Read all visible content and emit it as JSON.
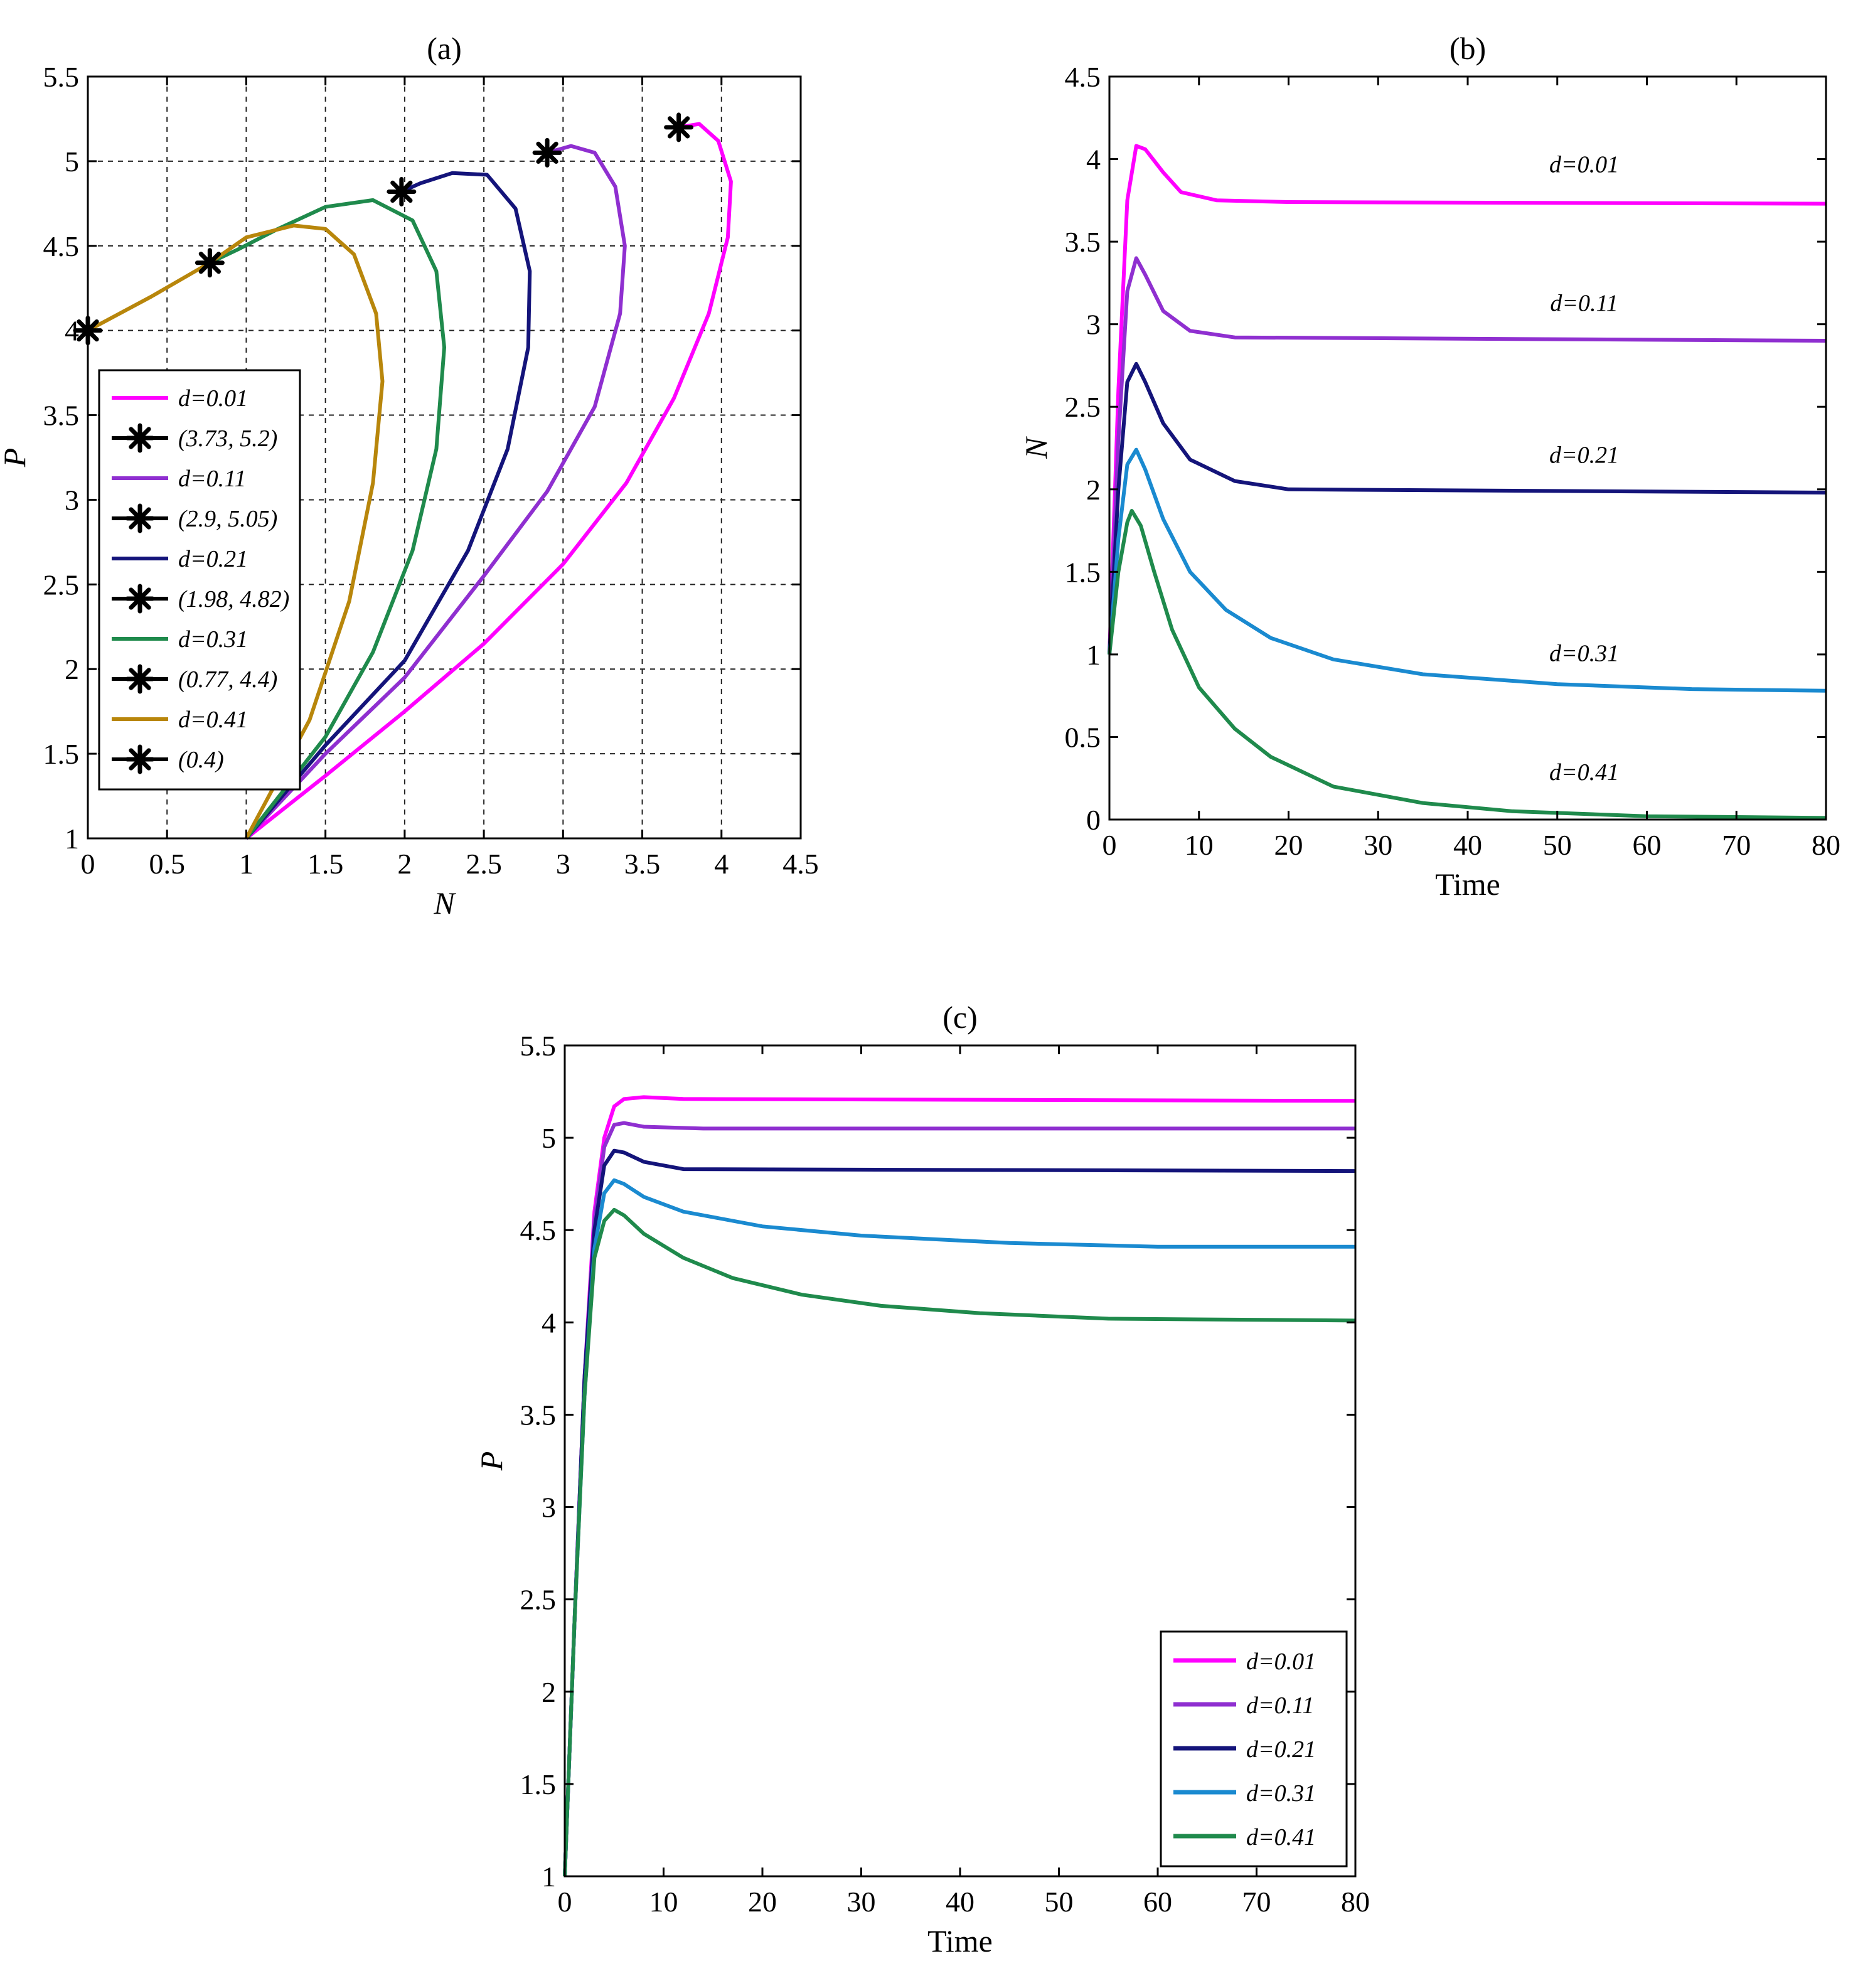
{
  "chart_data": [
    {
      "id": "a",
      "type": "line",
      "title": "(a)",
      "xlabel": "N",
      "ylabel": "P",
      "xlim": [
        0,
        4.5
      ],
      "ylim": [
        1,
        5.5
      ],
      "xticks": [
        "0",
        "0.5",
        "1",
        "1.5",
        "2",
        "2.5",
        "3",
        "3.5",
        "4",
        "4.5"
      ],
      "yticks": [
        "1",
        "1.5",
        "2",
        "2.5",
        "3",
        "3.5",
        "4",
        "4.5",
        "5",
        "5.5"
      ],
      "grid": true,
      "legend_position": "left-middle",
      "series": [
        {
          "name": "d=0.01",
          "color": "#ff00ff",
          "points": [
            [
              1,
              1
            ],
            [
              1.5,
              1.37
            ],
            [
              2,
              1.75
            ],
            [
              2.5,
              2.15
            ],
            [
              3,
              2.62
            ],
            [
              3.4,
              3.1
            ],
            [
              3.7,
              3.6
            ],
            [
              3.92,
              4.1
            ],
            [
              4.04,
              4.55
            ],
            [
              4.06,
              4.88
            ],
            [
              3.98,
              5.12
            ],
            [
              3.86,
              5.22
            ],
            [
              3.73,
              5.2
            ]
          ]
        },
        {
          "name": "d=0.11",
          "color": "#8f2fd0",
          "points": [
            [
              1,
              1
            ],
            [
              1.5,
              1.5
            ],
            [
              2,
              1.95
            ],
            [
              2.5,
              2.55
            ],
            [
              2.9,
              3.05
            ],
            [
              3.2,
              3.55
            ],
            [
              3.36,
              4.1
            ],
            [
              3.39,
              4.5
            ],
            [
              3.33,
              4.85
            ],
            [
              3.2,
              5.05
            ],
            [
              3.05,
              5.09
            ],
            [
              2.9,
              5.05
            ]
          ]
        },
        {
          "name": "d=0.21",
          "color": "#14147a",
          "points": [
            [
              1,
              1
            ],
            [
              1.5,
              1.55
            ],
            [
              2,
              2.05
            ],
            [
              2.4,
              2.7
            ],
            [
              2.65,
              3.3
            ],
            [
              2.78,
              3.9
            ],
            [
              2.79,
              4.35
            ],
            [
              2.7,
              4.72
            ],
            [
              2.52,
              4.92
            ],
            [
              2.3,
              4.93
            ],
            [
              2.1,
              4.87
            ],
            [
              1.98,
              4.82
            ]
          ]
        },
        {
          "name": "d=0.31",
          "color": "#1f8a4c",
          "points": [
            [
              1,
              1
            ],
            [
              1.5,
              1.6
            ],
            [
              1.8,
              2.1
            ],
            [
              2.05,
              2.7
            ],
            [
              2.2,
              3.3
            ],
            [
              2.25,
              3.9
            ],
            [
              2.2,
              4.35
            ],
            [
              2.05,
              4.65
            ],
            [
              1.8,
              4.77
            ],
            [
              1.5,
              4.73
            ],
            [
              1.2,
              4.6
            ],
            [
              0.95,
              4.48
            ],
            [
              0.77,
              4.4
            ]
          ]
        },
        {
          "name": "d=0.41",
          "color": "#b8860b",
          "points": [
            [
              1,
              1
            ],
            [
              1.4,
              1.7
            ],
            [
              1.65,
              2.4
            ],
            [
              1.8,
              3.1
            ],
            [
              1.86,
              3.7
            ],
            [
              1.82,
              4.1
            ],
            [
              1.68,
              4.45
            ],
            [
              1.5,
              4.6
            ],
            [
              1.3,
              4.62
            ],
            [
              1.0,
              4.55
            ],
            [
              0.77,
              4.4
            ],
            [
              0.4,
              4.2
            ],
            [
              0,
              4.0
            ]
          ]
        }
      ],
      "markers": [
        {
          "label": "(3.73, 5.2)",
          "x": 3.73,
          "y": 5.2
        },
        {
          "label": "(2.9, 5.05)",
          "x": 2.9,
          "y": 5.05
        },
        {
          "label": "(1.98, 4.82)",
          "x": 1.98,
          "y": 4.82
        },
        {
          "label": "(0.77, 4.4)",
          "x": 0.77,
          "y": 4.4
        },
        {
          "label": "(0.4)",
          "x": 0,
          "y": 4.0
        }
      ]
    },
    {
      "id": "b",
      "type": "line",
      "title": "(b)",
      "xlabel": "Time",
      "ylabel": "N",
      "xlim": [
        0,
        80
      ],
      "ylim": [
        0,
        4.5
      ],
      "xticks": [
        "0",
        "10",
        "20",
        "30",
        "40",
        "50",
        "60",
        "70",
        "80"
      ],
      "yticks": [
        "0",
        "0.5",
        "1",
        "1.5",
        "2",
        "2.5",
        "3",
        "3.5",
        "4",
        "4.5"
      ],
      "grid": false,
      "series": [
        {
          "name": "d=0.01",
          "label_x": 53,
          "label_y": 3.92,
          "color": "#ff00ff",
          "points": [
            [
              0,
              1
            ],
            [
              1,
              2.6
            ],
            [
              2,
              3.75
            ],
            [
              3,
              4.08
            ],
            [
              4,
              4.06
            ],
            [
              6,
              3.92
            ],
            [
              8,
              3.8
            ],
            [
              12,
              3.75
            ],
            [
              20,
              3.74
            ],
            [
              80,
              3.73
            ]
          ]
        },
        {
          "name": "d=0.11",
          "label_x": 53,
          "label_y": 3.08,
          "color": "#8f2fd0",
          "points": [
            [
              0,
              1
            ],
            [
              1,
              2.3
            ],
            [
              2,
              3.2
            ],
            [
              3,
              3.4
            ],
            [
              4,
              3.3
            ],
            [
              6,
              3.08
            ],
            [
              9,
              2.96
            ],
            [
              14,
              2.92
            ],
            [
              80,
              2.9
            ]
          ]
        },
        {
          "name": "d=0.21",
          "label_x": 53,
          "label_y": 2.16,
          "color": "#14147a",
          "points": [
            [
              0,
              1
            ],
            [
              1,
              2.0
            ],
            [
              2,
              2.65
            ],
            [
              3,
              2.76
            ],
            [
              4,
              2.65
            ],
            [
              6,
              2.4
            ],
            [
              9,
              2.18
            ],
            [
              14,
              2.05
            ],
            [
              20,
              2.0
            ],
            [
              80,
              1.98
            ]
          ]
        },
        {
          "name": "d=0.31",
          "label_x": 53,
          "label_y": 0.96,
          "color": "#1a8ad0",
          "points": [
            [
              0,
              1
            ],
            [
              1,
              1.7
            ],
            [
              2,
              2.15
            ],
            [
              3,
              2.24
            ],
            [
              4,
              2.12
            ],
            [
              6,
              1.82
            ],
            [
              9,
              1.5
            ],
            [
              13,
              1.27
            ],
            [
              18,
              1.1
            ],
            [
              25,
              0.97
            ],
            [
              35,
              0.88
            ],
            [
              50,
              0.82
            ],
            [
              65,
              0.79
            ],
            [
              80,
              0.78
            ]
          ]
        },
        {
          "name": "d=0.41",
          "label_x": 53,
          "label_y": 0.24,
          "color": "#1f8a4c",
          "points": [
            [
              0,
              1
            ],
            [
              1,
              1.5
            ],
            [
              2,
              1.8
            ],
            [
              2.5,
              1.87
            ],
            [
              3.5,
              1.78
            ],
            [
              5,
              1.5
            ],
            [
              7,
              1.15
            ],
            [
              10,
              0.8
            ],
            [
              14,
              0.55
            ],
            [
              18,
              0.38
            ],
            [
              25,
              0.2
            ],
            [
              35,
              0.1
            ],
            [
              45,
              0.05
            ],
            [
              60,
              0.02
            ],
            [
              80,
              0.01
            ]
          ]
        }
      ]
    },
    {
      "id": "c",
      "type": "line",
      "title": "(c)",
      "xlabel": "Time",
      "ylabel": "P",
      "xlim": [
        0,
        80
      ],
      "ylim": [
        1,
        5.5
      ],
      "xticks": [
        "0",
        "10",
        "20",
        "30",
        "40",
        "50",
        "60",
        "70",
        "80"
      ],
      "yticks": [
        "1",
        "1.5",
        "2",
        "2.5",
        "3",
        "3.5",
        "4",
        "4.5",
        "5",
        "5.5"
      ],
      "grid": false,
      "legend_position": "bottom-right",
      "series": [
        {
          "name": "d=0.01",
          "color": "#ff00ff",
          "points": [
            [
              0,
              1
            ],
            [
              1,
              2.4
            ],
            [
              2,
              3.7
            ],
            [
              3,
              4.6
            ],
            [
              4,
              5.0
            ],
            [
              5,
              5.17
            ],
            [
              6,
              5.21
            ],
            [
              8,
              5.22
            ],
            [
              12,
              5.21
            ],
            [
              80,
              5.2
            ]
          ]
        },
        {
          "name": "d=0.11",
          "color": "#8f2fd0",
          "points": [
            [
              0,
              1
            ],
            [
              1,
              2.4
            ],
            [
              2,
              3.7
            ],
            [
              3,
              4.55
            ],
            [
              4,
              4.95
            ],
            [
              5,
              5.07
            ],
            [
              6,
              5.08
            ],
            [
              8,
              5.06
            ],
            [
              14,
              5.05
            ],
            [
              80,
              5.05
            ]
          ]
        },
        {
          "name": "d=0.21",
          "color": "#14147a",
          "points": [
            [
              0,
              1
            ],
            [
              1,
              2.4
            ],
            [
              2,
              3.7
            ],
            [
              3,
              4.5
            ],
            [
              4,
              4.85
            ],
            [
              5,
              4.93
            ],
            [
              6,
              4.92
            ],
            [
              8,
              4.87
            ],
            [
              12,
              4.83
            ],
            [
              80,
              4.82
            ]
          ]
        },
        {
          "name": "d=0.31",
          "color": "#1a8ad0",
          "points": [
            [
              0,
              1
            ],
            [
              1,
              2.4
            ],
            [
              2,
              3.6
            ],
            [
              3,
              4.4
            ],
            [
              4,
              4.7
            ],
            [
              5,
              4.77
            ],
            [
              6,
              4.75
            ],
            [
              8,
              4.68
            ],
            [
              12,
              4.6
            ],
            [
              20,
              4.52
            ],
            [
              30,
              4.47
            ],
            [
              45,
              4.43
            ],
            [
              60,
              4.41
            ],
            [
              80,
              4.41
            ]
          ]
        },
        {
          "name": "d=0.41",
          "color": "#1f8a4c",
          "points": [
            [
              0,
              1
            ],
            [
              1,
              2.4
            ],
            [
              2,
              3.6
            ],
            [
              3,
              4.35
            ],
            [
              4,
              4.55
            ],
            [
              5,
              4.61
            ],
            [
              6,
              4.58
            ],
            [
              8,
              4.48
            ],
            [
              12,
              4.35
            ],
            [
              17,
              4.24
            ],
            [
              24,
              4.15
            ],
            [
              32,
              4.09
            ],
            [
              42,
              4.05
            ],
            [
              55,
              4.02
            ],
            [
              80,
              4.01
            ]
          ]
        }
      ]
    }
  ]
}
